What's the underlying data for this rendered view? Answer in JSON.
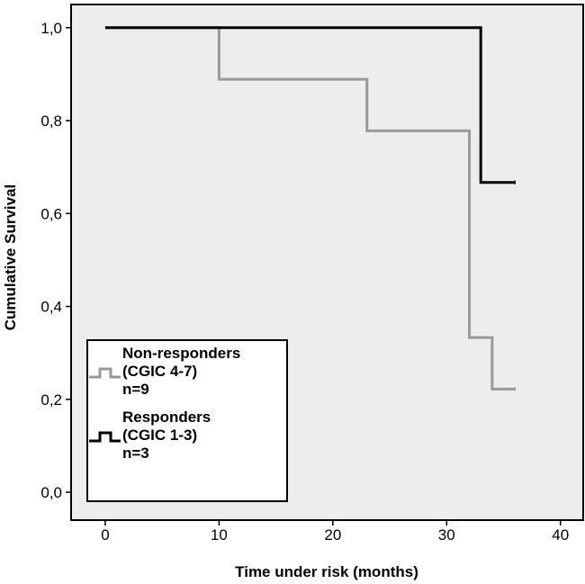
{
  "chart_data": {
    "type": "line",
    "subtype": "kaplan-meier step",
    "title": "",
    "xlabel": "Time under risk (months)",
    "ylabel": "Cumulative Survival",
    "xlim": [
      -3,
      42
    ],
    "ylim": [
      -0.06,
      1.05
    ],
    "x_ticks": [
      0,
      10,
      20,
      30,
      40
    ],
    "x_tick_labels": [
      "0",
      "10",
      "20",
      "30",
      "40"
    ],
    "y_ticks": [
      0.0,
      0.2,
      0.4,
      0.6,
      0.8,
      1.0
    ],
    "y_tick_labels": [
      "0,0",
      "0,2",
      "0,4",
      "0,6",
      "0,8",
      "1,0"
    ],
    "grid": false,
    "plot_background": "#ededed",
    "legend_position": "bottom-left",
    "series": [
      {
        "name": "Non-responders (CGIC 4-7) n=9",
        "legend_lines": [
          "Non-responders",
          "(CGIC 4-7)",
          "n=9"
        ],
        "color": "#999999",
        "steps": [
          [
            0,
            1.0
          ],
          [
            10,
            0.889
          ],
          [
            23,
            0.778
          ],
          [
            32,
            0.333
          ],
          [
            34,
            0.222
          ]
        ],
        "end_x": 36
      },
      {
        "name": "Responders (CGIC 1-3) n=3",
        "legend_lines": [
          "Responders",
          "(CGIC 1-3)",
          "n=3"
        ],
        "color": "#000000",
        "steps": [
          [
            0,
            1.0
          ],
          [
            33,
            0.667
          ]
        ],
        "end_x": 36
      }
    ]
  }
}
